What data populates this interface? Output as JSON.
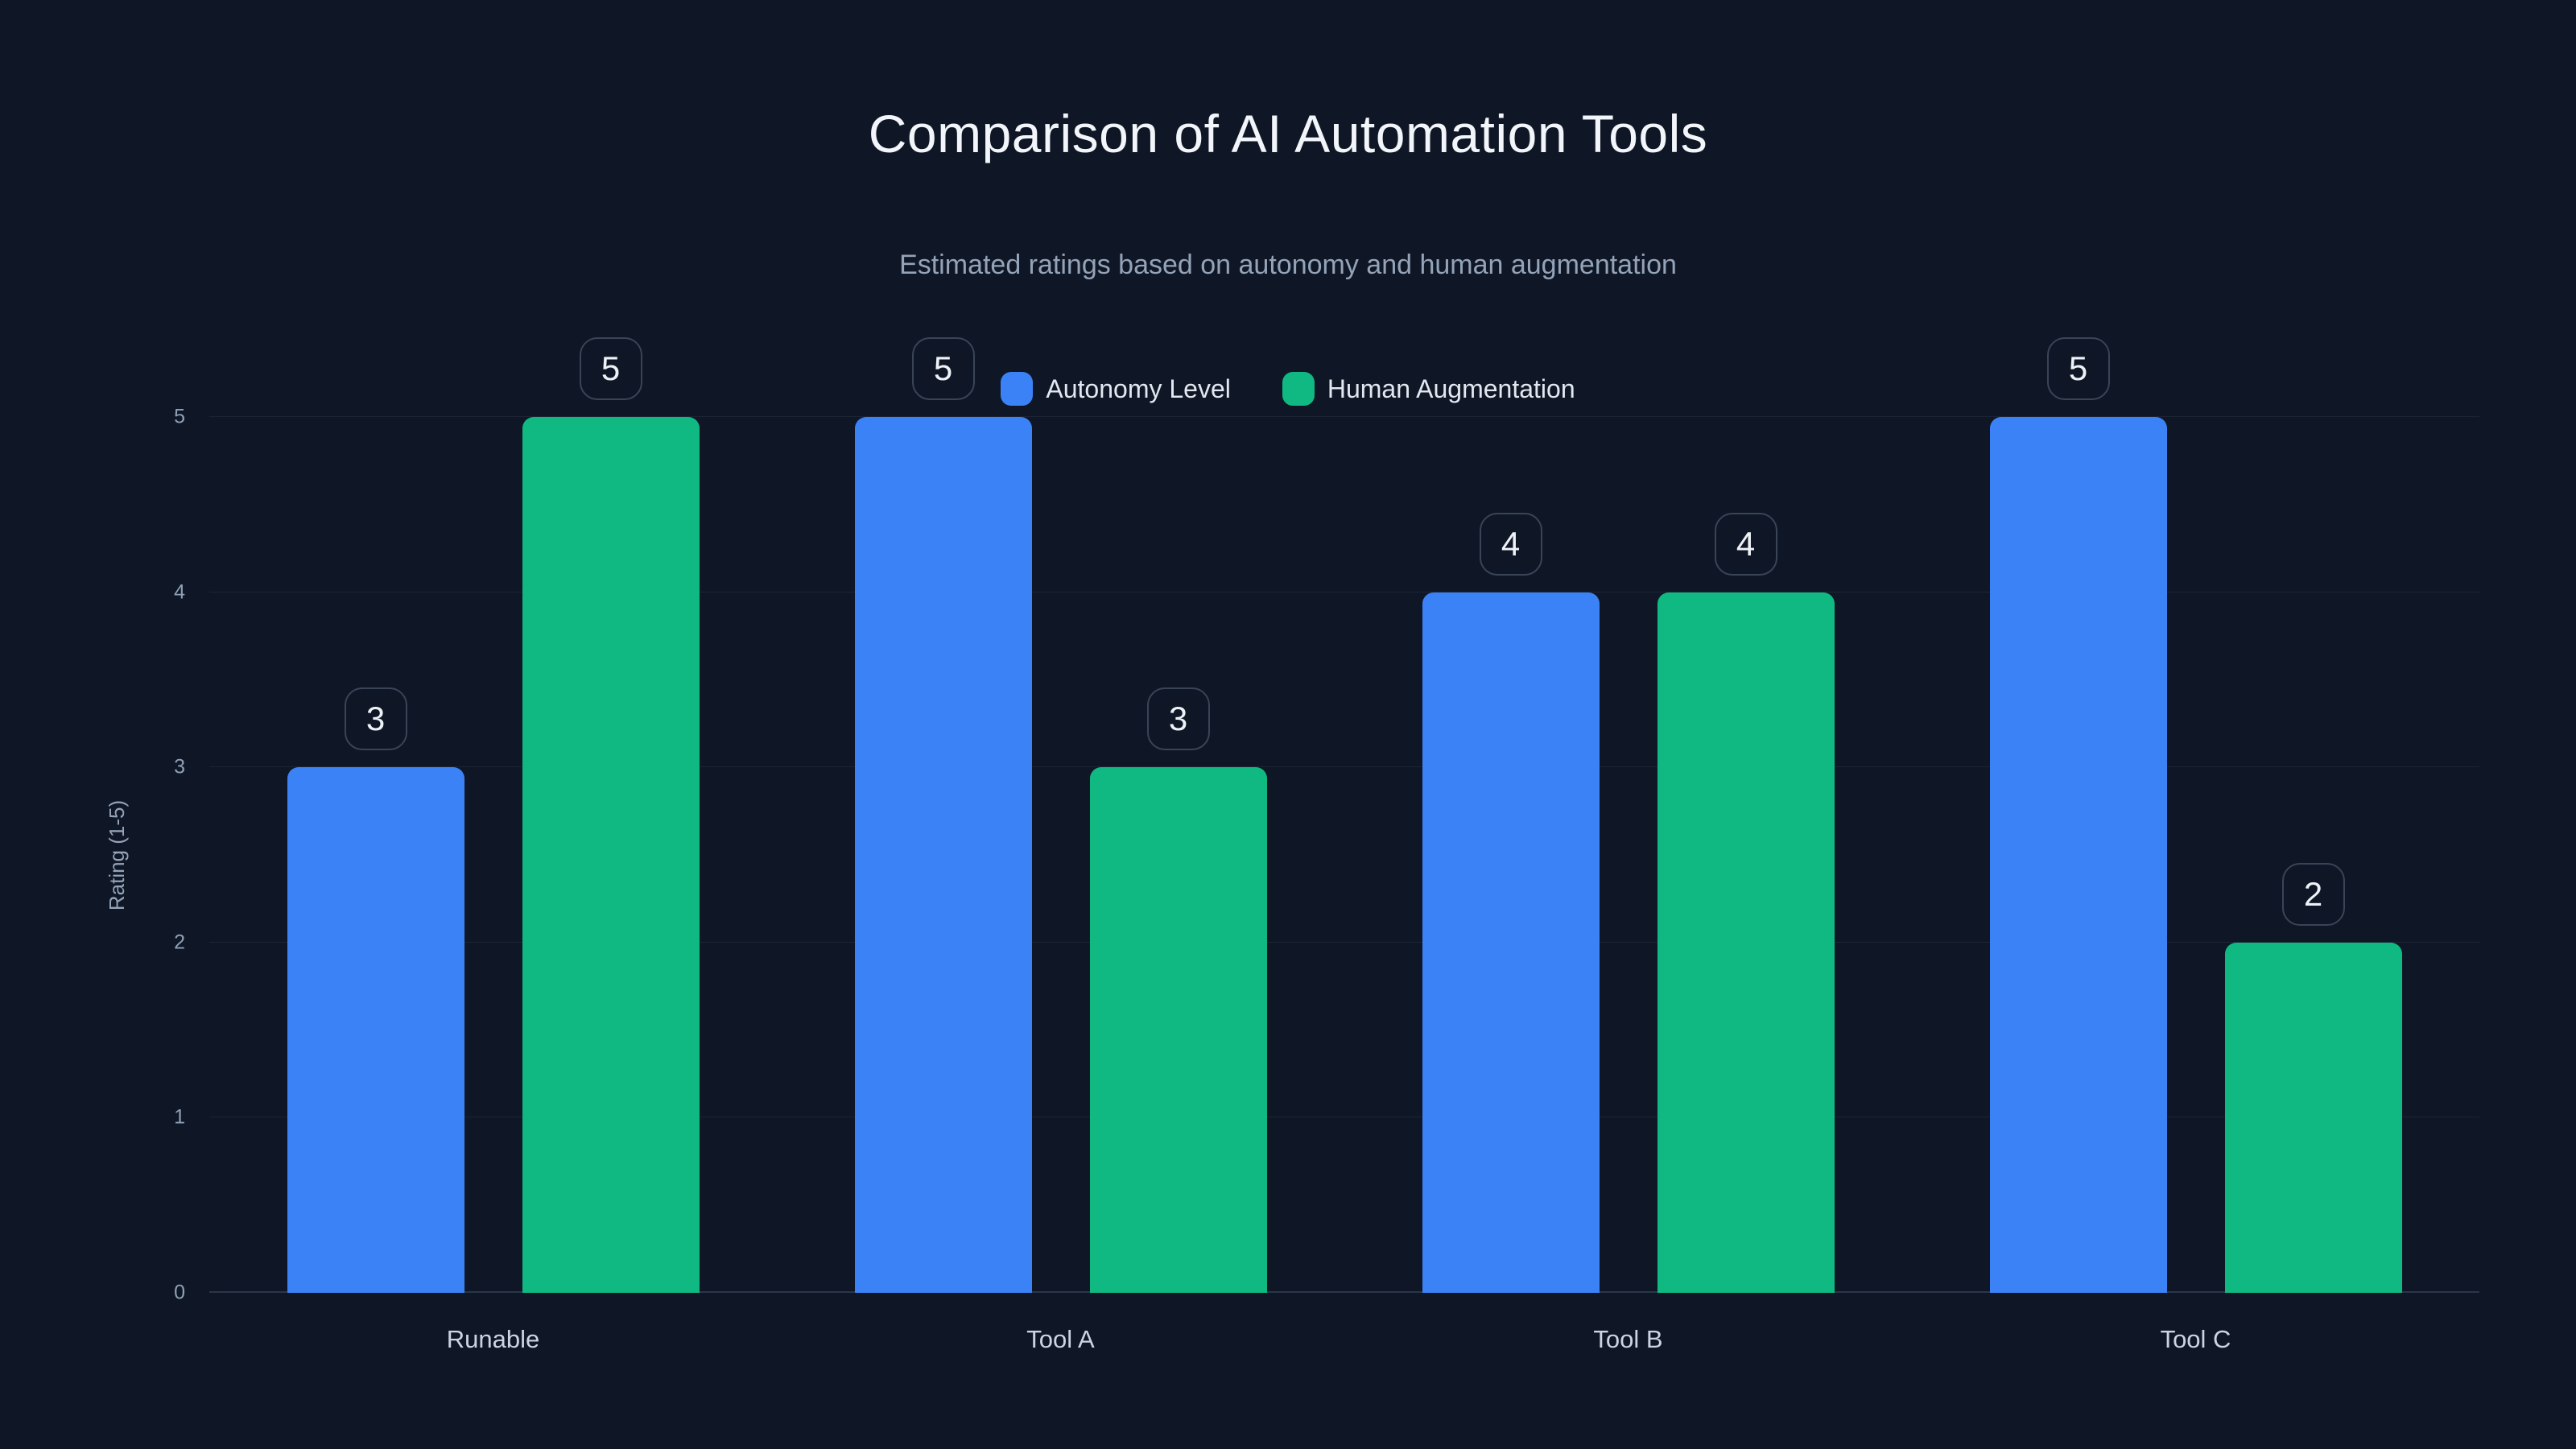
{
  "header": {
    "title": "Comparison of AI Automation Tools",
    "subtitle": "Estimated ratings based on autonomy and human augmentation"
  },
  "chart_data": {
    "type": "bar",
    "title": "Comparison of AI Automation Tools",
    "subtitle": "Estimated ratings based on autonomy and human augmentation",
    "categories": [
      "Runable",
      "Tool A",
      "Tool B",
      "Tool C"
    ],
    "series": [
      {
        "name": "Autonomy Level",
        "color": "#3b82f6",
        "values": [
          3,
          5,
          4,
          5
        ]
      },
      {
        "name": "Human Augmentation",
        "color": "#10b981",
        "values": [
          5,
          3,
          4,
          2
        ]
      }
    ],
    "xlabel": "",
    "ylabel": "Rating (1-5)",
    "ylim": [
      0,
      5
    ],
    "yticks": [
      0,
      1,
      2,
      3,
      4,
      5
    ],
    "grid": true,
    "legend_position": "top-center",
    "value_labels": true,
    "value_label_style": "rounded-outline-badge-above-bar"
  },
  "colors": {
    "background": "#0f1726",
    "title_text": "#f2f5f9",
    "subtitle_text": "#94a3b8",
    "tick_text": "#8fa0b5",
    "category_text": "#cbd5e1",
    "legend_text": "#e2e8f0",
    "gridline": "rgba(148,163,184,0.10)",
    "axis_line": "#2b3648",
    "badge_border": "#3a4457",
    "badge_text": "#eef2f7",
    "series_blue": "#3b82f6",
    "series_green": "#10b981"
  }
}
